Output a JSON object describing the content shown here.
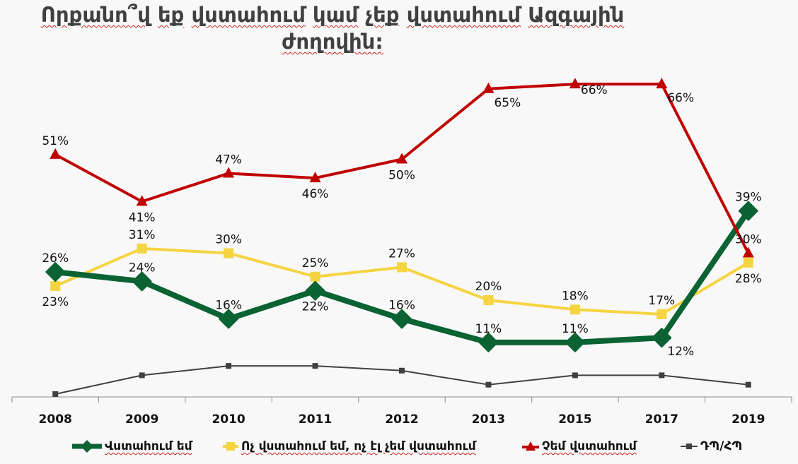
{
  "title_lines": [
    [
      "Որքանո՞վ",
      "եք",
      "վստահում",
      "կամ",
      "չեք",
      "վստահում",
      "Ազգային"
    ],
    [
      "ժողովին:"
    ]
  ],
  "chart_data": {
    "type": "line",
    "title": "Որքանո՞վ եք վստահում կամ չեք վստահում Ազգային ժողովին:",
    "xlabel": "",
    "ylabel": "",
    "categories": [
      "2008",
      "2009",
      "2010",
      "2011",
      "2012",
      "2013",
      "2015",
      "2017",
      "2019"
    ],
    "ylim": [
      0,
      70
    ],
    "y_unit": "%",
    "grid": false,
    "legend_position": "bottom",
    "series": [
      {
        "key": "trust",
        "name": "Վստահում եմ",
        "color": "#0b6233",
        "marker": "diamond",
        "labeled": true,
        "values": [
          26,
          24,
          16,
          22,
          16,
          11,
          11,
          12,
          39
        ],
        "label_pos": [
          "above",
          "above",
          "above",
          "below",
          "above",
          "above",
          "above",
          "below-right",
          "above"
        ]
      },
      {
        "key": "neutral",
        "name": "Ոչ վստահում եմ, ոչ էլ չեմ վստահում",
        "color": "#f5d442",
        "marker": "square",
        "labeled": true,
        "values": [
          23,
          31,
          30,
          25,
          27,
          20,
          18,
          17,
          28
        ],
        "label_pos": [
          "below",
          "above",
          "above",
          "above",
          "above",
          "above",
          "above",
          "above",
          "below"
        ]
      },
      {
        "key": "distrust",
        "name": "Չեմ վստահում",
        "color": "#c00000",
        "marker": "triangle",
        "labeled": true,
        "values": [
          51,
          41,
          47,
          46,
          50,
          65,
          66,
          66,
          30
        ],
        "label_pos": [
          "above",
          "below",
          "above",
          "below",
          "below",
          "below-right",
          "right",
          "below-right",
          "above"
        ]
      },
      {
        "key": "dk",
        "name": "ԴՊ/ՀՊ",
        "color": "#404040",
        "marker": "small-square",
        "labeled": false,
        "values": [
          0,
          4,
          6,
          6,
          5,
          2,
          4,
          4,
          2
        ]
      }
    ]
  },
  "legend": [
    {
      "key": "trust",
      "label": "Վստահում եմ",
      "underline": true
    },
    {
      "key": "neutral",
      "label": "Ոչ վստահում եմ, ոչ էլ չեմ վստահում",
      "underline": true
    },
    {
      "key": "distrust",
      "label": "Չեմ վստահում",
      "underline": true
    },
    {
      "key": "dk",
      "label": "ԴՊ/ՀՊ",
      "underline": false
    }
  ]
}
